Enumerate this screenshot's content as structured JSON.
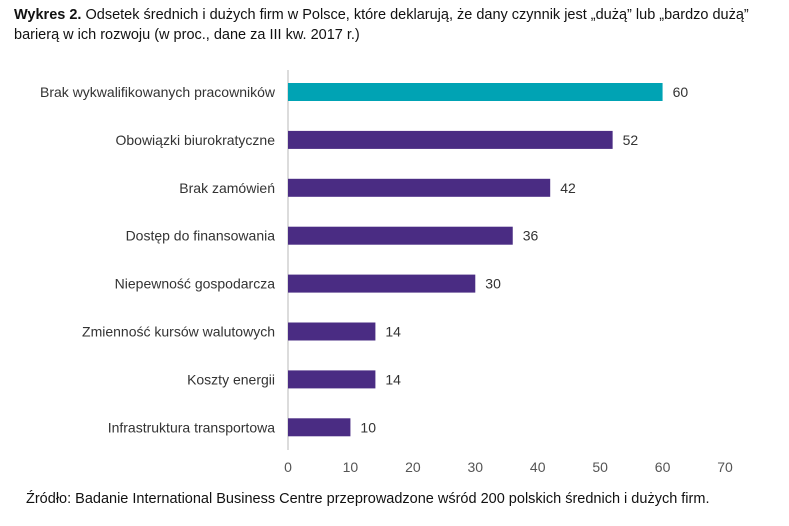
{
  "title": {
    "label": "Wykres 2.",
    "text": "Odsetek średnich i dużych firm w Polsce, które deklarują, że dany czynnik jest „dużą” lub „bardzo dużą” barierą w ich rozwoju (w proc., dane za III kw. 2017 r.)"
  },
  "source": "Źródło: Badanie International Business Centre przeprowadzone wśród 200 polskich średnich i dużych firm.",
  "chart_data": {
    "type": "bar",
    "orientation": "horizontal",
    "categories": [
      "Brak wykwalifikowanych pracowników",
      "Obowiązki biurokratyczne",
      "Brak zamówień",
      "Dostęp do finansowania",
      "Niepewność gospodarcza",
      "Zmienność kursów walutowych",
      "Koszty energii",
      "Infrastruktura transportowa"
    ],
    "values": [
      60,
      52,
      42,
      36,
      30,
      14,
      14,
      10
    ],
    "xlim": [
      0,
      70
    ],
    "xticks": [
      0,
      10,
      20,
      30,
      40,
      50,
      60,
      70
    ],
    "grid": false,
    "data_labels": true,
    "colors": {
      "highlight": "#00a3b4",
      "default": "#4a2c83"
    }
  }
}
